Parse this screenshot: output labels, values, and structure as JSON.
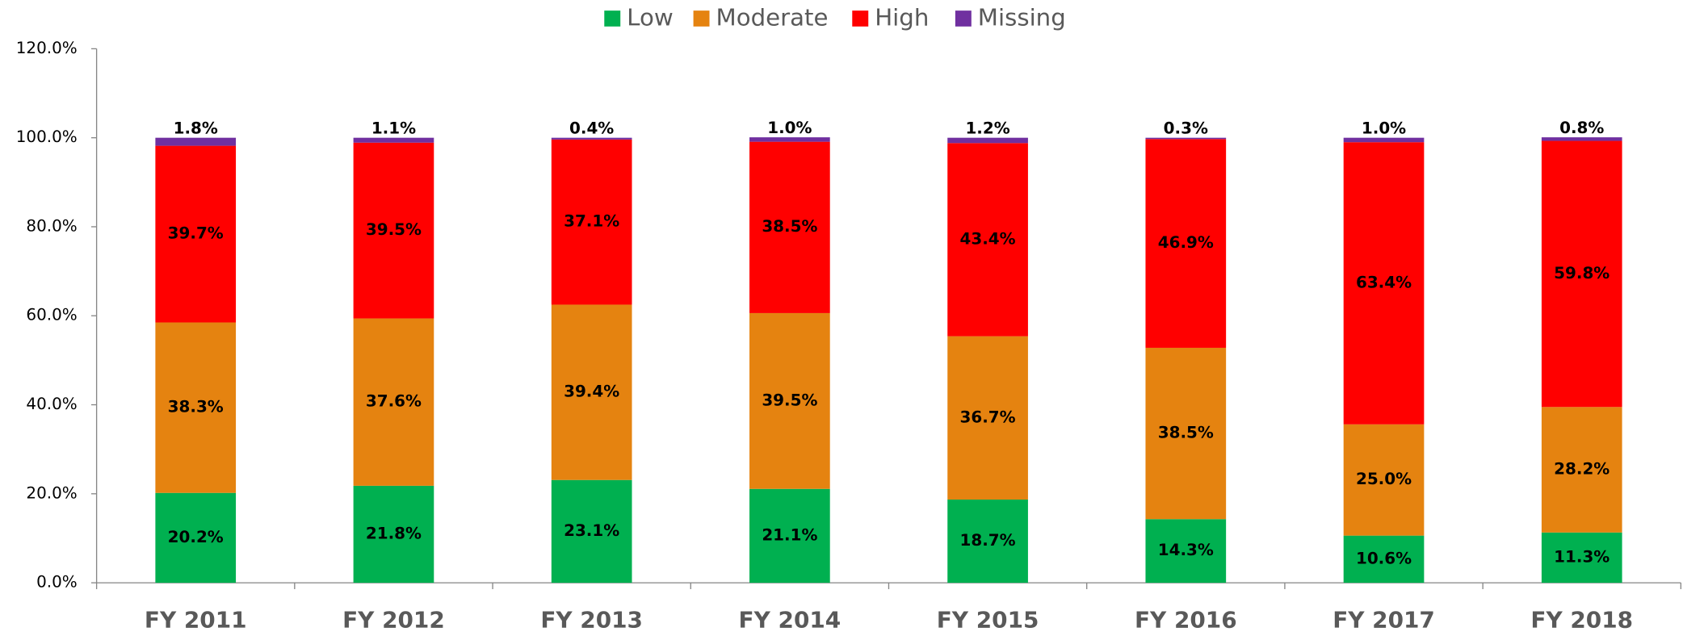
{
  "chart_data": {
    "type": "stacked_bar",
    "categories": [
      "FY 2011",
      "FY 2012",
      "FY 2013",
      "FY 2014",
      "FY 2015",
      "FY 2016",
      "FY 2017",
      "FY 2018"
    ],
    "series": [
      {
        "name": "Low",
        "color": "#00b050",
        "values": [
          20.2,
          21.8,
          23.1,
          21.1,
          18.7,
          14.3,
          10.6,
          11.3
        ],
        "value_labels": [
          "20.2%",
          "21.8%",
          "23.1%",
          "21.1%",
          "18.7%",
          "14.3%",
          "10.6%",
          "11.3%"
        ]
      },
      {
        "name": "Moderate",
        "color": "#e58310",
        "values": [
          38.3,
          37.6,
          39.4,
          39.5,
          36.7,
          38.5,
          25.0,
          28.2
        ],
        "value_labels": [
          "38.3%",
          "37.6%",
          "39.4%",
          "39.5%",
          "36.7%",
          "38.5%",
          "25.0%",
          "28.2%"
        ]
      },
      {
        "name": "High",
        "color": "#ff0000",
        "values": [
          39.7,
          39.5,
          37.1,
          38.5,
          43.4,
          46.9,
          63.4,
          59.8
        ],
        "value_labels": [
          "39.7%",
          "39.5%",
          "37.1%",
          "38.5%",
          "43.4%",
          "46.9%",
          "63.4%",
          "59.8%"
        ]
      },
      {
        "name": "Missing",
        "color": "#7030a0",
        "values": [
          1.8,
          1.1,
          0.4,
          1.0,
          1.2,
          0.3,
          1.0,
          0.8
        ],
        "value_labels": [
          "1.8%",
          "1.1%",
          "0.4%",
          "1.0%",
          "1.2%",
          "0.3%",
          "1.0%",
          "0.8%"
        ]
      }
    ],
    "ylim": [
      0,
      120
    ],
    "yticks": [
      {
        "value": 0,
        "label": "0.0%"
      },
      {
        "value": 20,
        "label": "20.0%"
      },
      {
        "value": 40,
        "label": "40.0%"
      },
      {
        "value": 60,
        "label": "60.0%"
      },
      {
        "value": 80,
        "label": "80.0%"
      },
      {
        "value": 100,
        "label": "100.0%"
      },
      {
        "value": 120,
        "label": "120.0%"
      }
    ],
    "legend": "top",
    "grid": false
  }
}
